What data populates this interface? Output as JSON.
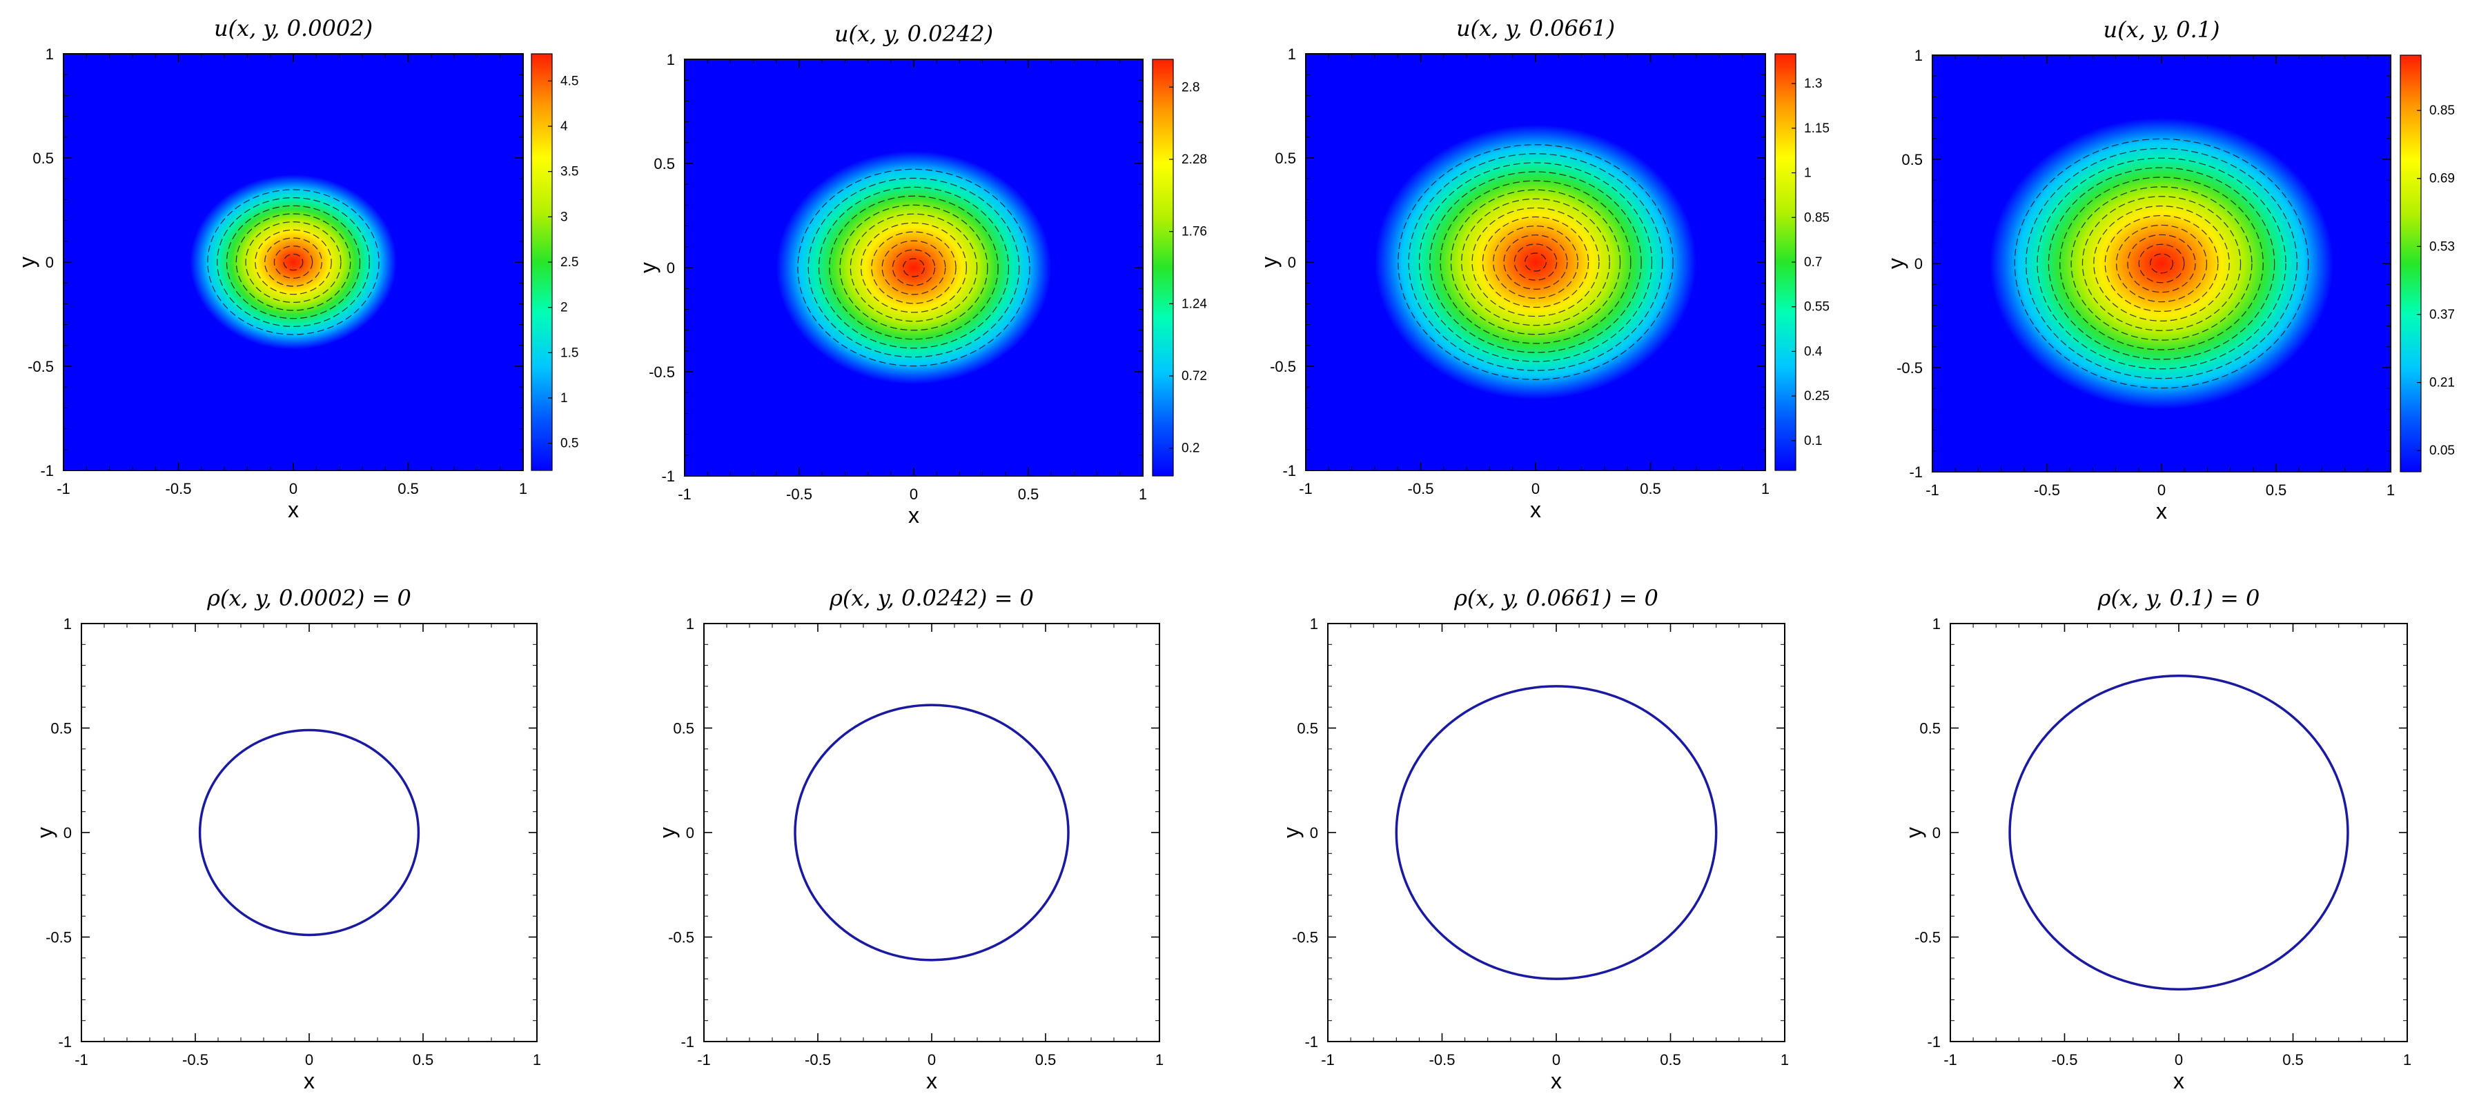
{
  "chart_data": [
    {
      "type": "heatmap",
      "title": "u(x, y, 0.0002)",
      "xlabel": "x",
      "ylabel": "y",
      "xlim": [
        -1,
        1
      ],
      "ylim": [
        -1,
        1
      ],
      "x_ticks": [
        "-1",
        "-0.5",
        "0",
        "0.5",
        "1"
      ],
      "y_ticks": [
        "-1",
        "-0.5",
        "0",
        "0.5",
        "1"
      ],
      "peak": 4.8,
      "radius_x": 0.45,
      "radius_y": 0.42,
      "contour_levels": 9,
      "colorbar": {
        "min": 0.2,
        "max": 4.8,
        "ticks": [
          "0.5",
          "1",
          "1.5",
          "2",
          "2.5",
          "3",
          "3.5",
          "4",
          "4.5"
        ],
        "tick_values": [
          0.5,
          1,
          1.5,
          2,
          2.5,
          3,
          3.5,
          4,
          4.5
        ]
      }
    },
    {
      "type": "heatmap",
      "title": "u(x, y, 0.0242)",
      "xlabel": "x",
      "ylabel": "y",
      "xlim": [
        -1,
        1
      ],
      "ylim": [
        -1,
        1
      ],
      "x_ticks": [
        "-1",
        "-0.5",
        "0",
        "0.5",
        "1"
      ],
      "y_ticks": [
        "-1",
        "-0.5",
        "0",
        "0.5",
        "1"
      ],
      "peak": 3.0,
      "radius_x": 0.6,
      "radius_y": 0.56,
      "contour_levels": 11,
      "colorbar": {
        "min": 0.0,
        "max": 3.0,
        "ticks": [
          "0.2",
          "0.72",
          "1.24",
          "1.76",
          "2.28",
          "2.8"
        ],
        "tick_values": [
          0.2,
          0.72,
          1.24,
          1.76,
          2.28,
          2.8
        ]
      }
    },
    {
      "type": "heatmap",
      "title": "u(x, y, 0.0661)",
      "xlabel": "x",
      "ylabel": "y",
      "xlim": [
        -1,
        1
      ],
      "ylim": [
        -1,
        1
      ],
      "x_ticks": [
        "-1",
        "-0.5",
        "0",
        "0.5",
        "1"
      ],
      "y_ticks": [
        "-1",
        "-0.5",
        "0",
        "0.5",
        "1"
      ],
      "peak": 1.4,
      "radius_x": 0.7,
      "radius_y": 0.66,
      "contour_levels": 13,
      "colorbar": {
        "min": 0.0,
        "max": 1.4,
        "ticks": [
          "0.1",
          "0.25",
          "0.4",
          "0.55",
          "0.7",
          "0.85",
          "1",
          "1.15",
          "1.3"
        ],
        "tick_values": [
          0.1,
          0.25,
          0.4,
          0.55,
          0.7,
          0.85,
          1,
          1.15,
          1.3
        ]
      }
    },
    {
      "type": "heatmap",
      "title": "u(x, y, 0.1)",
      "xlabel": "x",
      "ylabel": "y",
      "xlim": [
        -1,
        1
      ],
      "ylim": [
        -1,
        1
      ],
      "x_ticks": [
        "-1",
        "-0.5",
        "0",
        "0.5",
        "1"
      ],
      "y_ticks": [
        "-1",
        "-0.5",
        "0",
        "0.5",
        "1"
      ],
      "peak": 0.98,
      "radius_x": 0.75,
      "radius_y": 0.7,
      "contour_levels": 13,
      "colorbar": {
        "min": 0.0,
        "max": 0.98,
        "ticks": [
          "0.05",
          "0.21",
          "0.37",
          "0.53",
          "0.69",
          "0.85"
        ],
        "tick_values": [
          0.05,
          0.21,
          0.37,
          0.53,
          0.69,
          0.85
        ]
      }
    },
    {
      "type": "line",
      "title": "ρ(x, y, 0.0002) = 0",
      "xlabel": "x",
      "ylabel": "y",
      "xlim": [
        -1,
        1
      ],
      "ylim": [
        -1,
        1
      ],
      "x_ticks": [
        "-1",
        "-0.5",
        "0",
        "0.5",
        "1"
      ],
      "y_ticks": [
        "-1",
        "-0.5",
        "0",
        "0.5",
        "1"
      ],
      "curve": {
        "shape": "ellipse",
        "cx": 0,
        "cy": 0,
        "rx": 0.48,
        "ry": 0.49,
        "color": "#1a1aa0"
      }
    },
    {
      "type": "line",
      "title": "ρ(x, y, 0.0242) = 0",
      "xlabel": "x",
      "ylabel": "y",
      "xlim": [
        -1,
        1
      ],
      "ylim": [
        -1,
        1
      ],
      "x_ticks": [
        "-1",
        "-0.5",
        "0",
        "0.5",
        "1"
      ],
      "y_ticks": [
        "-1",
        "-0.5",
        "0",
        "0.5",
        "1"
      ],
      "curve": {
        "shape": "ellipse",
        "cx": 0,
        "cy": 0,
        "rx": 0.6,
        "ry": 0.61,
        "color": "#1a1aa0"
      }
    },
    {
      "type": "line",
      "title": "ρ(x, y, 0.0661) = 0",
      "xlabel": "x",
      "ylabel": "y",
      "xlim": [
        -1,
        1
      ],
      "ylim": [
        -1,
        1
      ],
      "x_ticks": [
        "-1",
        "-0.5",
        "0",
        "0.5",
        "1"
      ],
      "y_ticks": [
        "-1",
        "-0.5",
        "0",
        "0.5",
        "1"
      ],
      "curve": {
        "shape": "ellipse",
        "cx": 0,
        "cy": 0,
        "rx": 0.7,
        "ry": 0.7,
        "color": "#1a1aa0"
      }
    },
    {
      "type": "line",
      "title": "ρ(x, y, 0.1) = 0",
      "xlabel": "x",
      "ylabel": "y",
      "xlim": [
        -1,
        1
      ],
      "ylim": [
        -1,
        1
      ],
      "x_ticks": [
        "-1",
        "-0.5",
        "0",
        "0.5",
        "1"
      ],
      "y_ticks": [
        "-1",
        "-0.5",
        "0",
        "0.5",
        "1"
      ],
      "curve": {
        "shape": "ellipse",
        "cx": 0,
        "cy": 0,
        "rx": 0.74,
        "ry": 0.75,
        "color": "#1a1aa0"
      }
    }
  ]
}
